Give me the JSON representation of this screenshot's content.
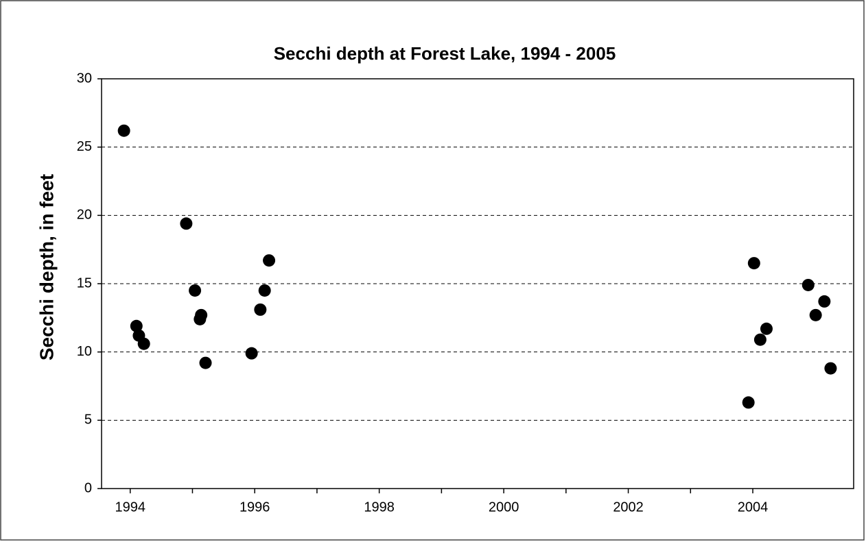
{
  "chart_data": {
    "type": "scatter",
    "title": "Secchi depth at Forest Lake, 1994 - 2005",
    "y_label": "Secchi depth, in feet",
    "color": "#000000",
    "grid": true,
    "xlim": [
      1993.54,
      2005.62
    ],
    "ylim": [
      0,
      30
    ],
    "xticks": [
      1994,
      1996,
      1998,
      2000,
      2002,
      2004
    ],
    "yticks": [
      0,
      5,
      10,
      15,
      20,
      25,
      30
    ],
    "x": [
      1993.9,
      1994.1,
      1994.14,
      1994.22,
      1994.9,
      1995.04,
      1995.14,
      1995.12,
      1995.21,
      1995.95,
      1996.09,
      1996.16,
      1996.23,
      2003.93,
      2004.02,
      2004.12,
      2004.22,
      2004.89,
      2005.01,
      2005.15,
      2005.25
    ],
    "values": [
      26.2,
      11.9,
      11.2,
      10.6,
      19.4,
      14.5,
      12.7,
      12.4,
      9.2,
      9.9,
      13.1,
      14.5,
      16.7,
      6.3,
      16.5,
      10.9,
      11.7,
      14.9,
      12.7,
      13.7,
      8.8
    ]
  }
}
